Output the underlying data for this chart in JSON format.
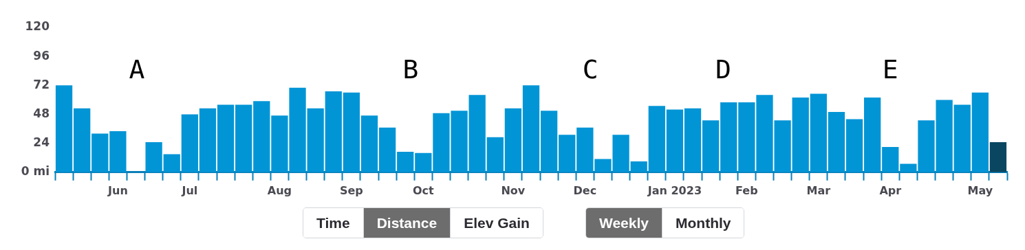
{
  "chart_data": {
    "type": "bar",
    "categories": [
      null,
      null,
      null,
      "Jun",
      null,
      null,
      null,
      "Jul",
      null,
      null,
      null,
      null,
      "Aug",
      null,
      null,
      null,
      "Sep",
      null,
      null,
      null,
      "Oct",
      null,
      null,
      null,
      null,
      "Nov",
      null,
      null,
      null,
      "Dec",
      null,
      null,
      null,
      null,
      "Jan 2023",
      null,
      null,
      null,
      "Feb",
      null,
      null,
      null,
      "Mar",
      null,
      null,
      null,
      "Apr",
      null,
      null,
      null,
      null,
      "May",
      null
    ],
    "values": [
      72,
      53,
      32,
      34,
      0,
      25,
      15,
      48,
      53,
      56,
      56,
      59,
      47,
      70,
      53,
      67,
      66,
      47,
      37,
      17,
      16,
      49,
      51,
      64,
      29,
      53,
      72,
      51,
      31,
      37,
      11,
      31,
      9,
      55,
      52,
      53,
      43,
      58,
      58,
      64,
      43,
      62,
      65,
      50,
      44,
      62,
      21,
      7,
      43,
      60,
      56,
      66,
      25
    ],
    "colors": [
      "#0295d6",
      "#0295d6",
      "#0295d6",
      "#0295d6",
      "#0295d6",
      "#0295d6",
      "#0295d6",
      "#0295d6",
      "#0295d6",
      "#0295d6",
      "#0295d6",
      "#0295d6",
      "#0295d6",
      "#0295d6",
      "#0295d6",
      "#0295d6",
      "#0295d6",
      "#0295d6",
      "#0295d6",
      "#0295d6",
      "#0295d6",
      "#0295d6",
      "#0295d6",
      "#0295d6",
      "#0295d6",
      "#0295d6",
      "#0295d6",
      "#0295d6",
      "#0295d6",
      "#0295d6",
      "#0295d6",
      "#0295d6",
      "#0295d6",
      "#0295d6",
      "#0295d6",
      "#0295d6",
      "#0295d6",
      "#0295d6",
      "#0295d6",
      "#0295d6",
      "#0295d6",
      "#0295d6",
      "#0295d6",
      "#0295d6",
      "#0295d6",
      "#0295d6",
      "#0295d6",
      "#0295d6",
      "#0295d6",
      "#0295d6",
      "#0295d6",
      "#0295d6",
      "#0a4660"
    ],
    "ylim": [
      0,
      120
    ],
    "yticks": [
      {
        "value": 0,
        "label": "0 mi"
      },
      24,
      48,
      72,
      96,
      120
    ],
    "grid": false,
    "legend": false,
    "annotations": [
      "A",
      "B",
      "C",
      "D",
      "E",
      "Time",
      "Distance",
      "Elev Gain",
      "Weekly",
      "Monthly"
    ]
  }
}
